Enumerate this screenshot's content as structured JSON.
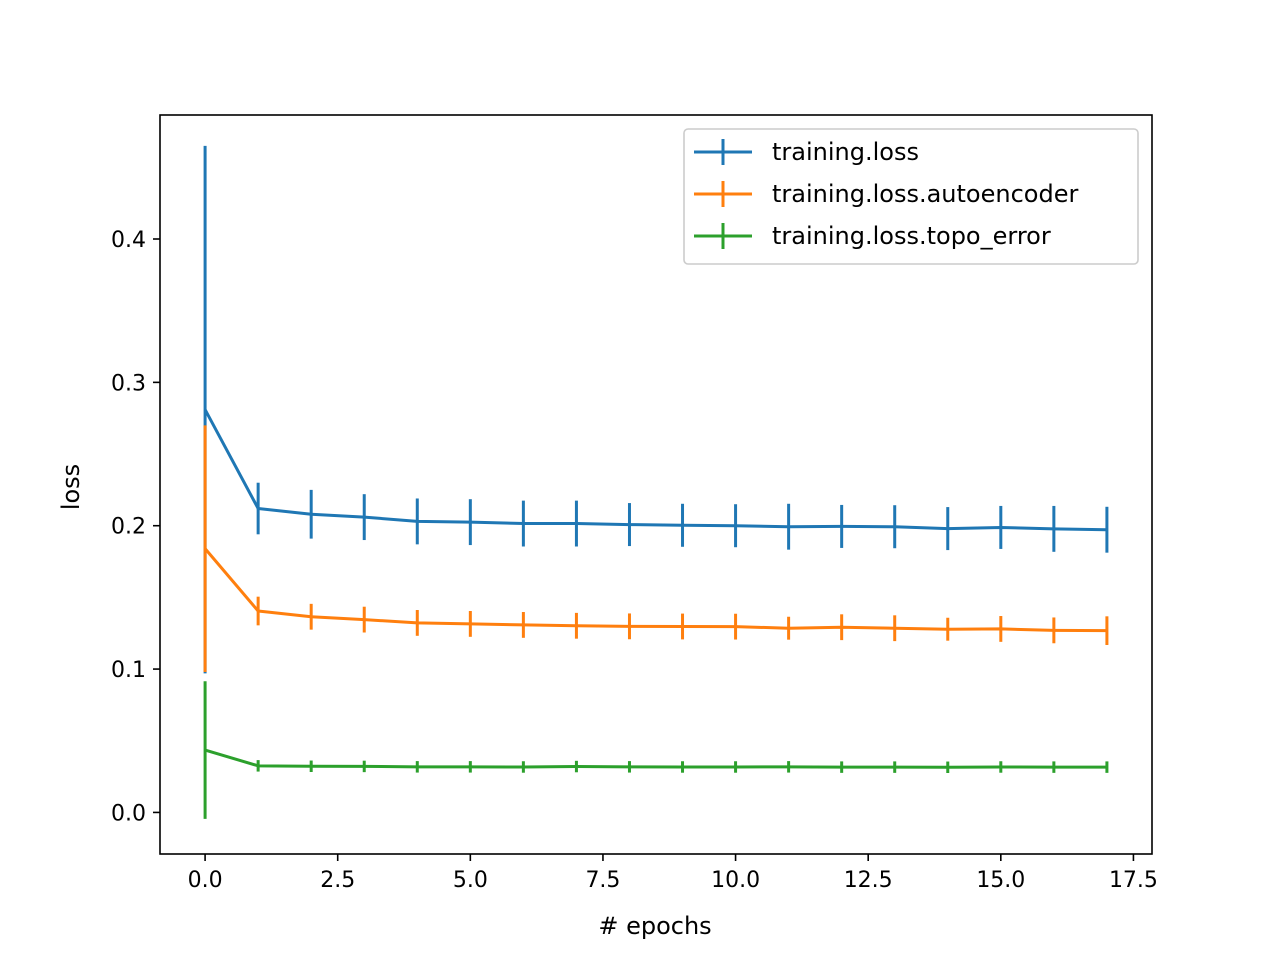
{
  "chart_data": {
    "type": "line",
    "title": "",
    "xlabel": "# epochs",
    "ylabel": "loss",
    "xlim": [
      -0.85,
      17.85
    ],
    "ylim": [
      -0.029,
      0.4865
    ],
    "x_ticks": [
      0.0,
      2.5,
      5.0,
      7.5,
      10.0,
      12.5,
      15.0,
      17.5
    ],
    "x_tick_labels": [
      "0.0",
      "2.5",
      "5.0",
      "7.5",
      "10.0",
      "12.5",
      "15.0",
      "17.5"
    ],
    "y_ticks": [
      0.0,
      0.1,
      0.2,
      0.3,
      0.4
    ],
    "y_tick_labels": [
      "0.0",
      "0.1",
      "0.2",
      "0.3",
      "0.4"
    ],
    "grid": false,
    "legend_position": "top-right",
    "x": [
      0,
      1,
      2,
      3,
      4,
      5,
      6,
      7,
      8,
      9,
      10,
      11,
      12,
      13,
      14,
      15,
      16,
      17
    ],
    "series": [
      {
        "name": "training.loss",
        "color": "#1f77b4",
        "values": [
          0.281,
          0.212,
          0.208,
          0.206,
          0.203,
          0.2025,
          0.2015,
          0.2015,
          0.2008,
          0.2003,
          0.2,
          0.1993,
          0.1995,
          0.1993,
          0.198,
          0.1988,
          0.1978,
          0.1972
        ],
        "errors": [
          0.184,
          0.018,
          0.017,
          0.016,
          0.016,
          0.016,
          0.016,
          0.016,
          0.015,
          0.015,
          0.015,
          0.016,
          0.015,
          0.015,
          0.015,
          0.015,
          0.016,
          0.016
        ]
      },
      {
        "name": "training.loss.autoencoder",
        "color": "#ff7f0e",
        "values": [
          0.184,
          0.1405,
          0.1365,
          0.1345,
          0.1322,
          0.1315,
          0.1308,
          0.1302,
          0.1298,
          0.1297,
          0.1296,
          0.1285,
          0.1292,
          0.1285,
          0.1278,
          0.128,
          0.127,
          0.1268
        ],
        "errors": [
          0.086,
          0.01,
          0.009,
          0.009,
          0.009,
          0.009,
          0.009,
          0.009,
          0.009,
          0.009,
          0.009,
          0.008,
          0.009,
          0.009,
          0.008,
          0.009,
          0.009,
          0.01
        ]
      },
      {
        "name": "training.loss.topo_error",
        "color": "#2ca02c",
        "values": [
          0.0435,
          0.0325,
          0.0322,
          0.0321,
          0.0318,
          0.0318,
          0.0317,
          0.032,
          0.0318,
          0.0317,
          0.0317,
          0.0318,
          0.0316,
          0.0316,
          0.0315,
          0.0317,
          0.0316,
          0.0316
        ],
        "errors": [
          0.048,
          0.004,
          0.004,
          0.004,
          0.004,
          0.004,
          0.004,
          0.004,
          0.004,
          0.004,
          0.004,
          0.004,
          0.004,
          0.004,
          0.004,
          0.004,
          0.004,
          0.004
        ]
      }
    ]
  }
}
